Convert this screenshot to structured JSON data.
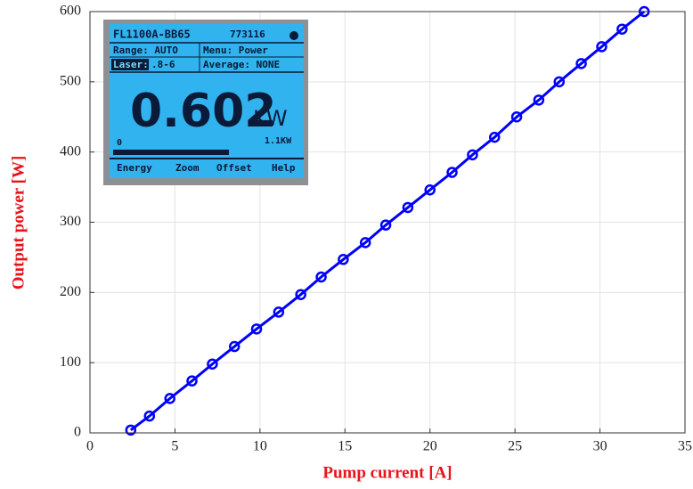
{
  "chart_data": {
    "type": "line",
    "xlabel": "Pump current [A]",
    "ylabel": "Output power [W]",
    "x": [
      2.4,
      3.5,
      4.7,
      6.0,
      7.2,
      8.5,
      9.8,
      11.1,
      12.4,
      13.6,
      14.9,
      16.2,
      17.4,
      18.7,
      20.0,
      21.3,
      22.5,
      23.8,
      25.1,
      26.4,
      27.6,
      28.9,
      30.1,
      31.3,
      32.6
    ],
    "values": [
      4,
      24,
      49,
      74,
      98,
      123,
      148,
      172,
      197,
      222,
      247,
      271,
      296,
      321,
      346,
      371,
      396,
      421,
      450,
      474,
      500,
      526,
      550,
      575,
      600
    ],
    "color": "#0000ff",
    "xlim": [
      0,
      35
    ],
    "xticks": [
      0,
      5,
      10,
      15,
      20,
      25,
      30,
      35
    ],
    "ylim": [
      0,
      600
    ],
    "yticks": [
      0,
      100,
      200,
      300,
      400,
      500,
      600
    ],
    "grid": true
  },
  "inset": {
    "model": "FL1100A-BB65",
    "serial": "773116",
    "range": "Range: AUTO",
    "menu": "Menu: Power",
    "laser": "Laser:",
    "laser_value": ".8-6",
    "average": "Average: NONE",
    "reading": "0.602",
    "unit": "KW",
    "scale_min": "0",
    "scale_max": "1.1KW",
    "buttons": [
      "Energy",
      "Zoom",
      "Offset",
      "Help"
    ]
  }
}
